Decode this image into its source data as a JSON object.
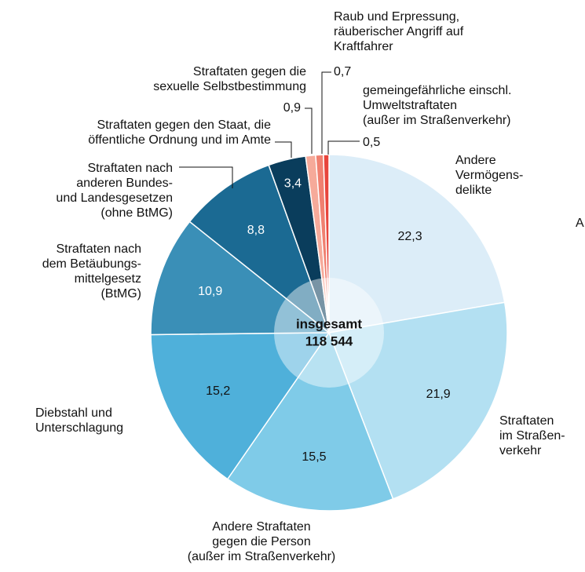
{
  "chart_data": {
    "type": "pie",
    "center_label": [
      "insgesamt",
      "118 544"
    ],
    "categories": [
      [
        "Andere",
        "Vermögens-",
        "delikte"
      ],
      [
        "Straftaten",
        "im Straßen-",
        "verkehr"
      ],
      [
        "Andere Straftaten",
        "gegen die Person",
        "(außer im Straßenverkehr)"
      ],
      [
        "Diebstahl und",
        "Unterschlagung"
      ],
      [
        "Straftaten nach",
        "dem Betäubungs-",
        "mittelgesetz",
        "(BtMG)"
      ],
      [
        "Straftaten nach",
        "anderen Bundes-",
        "und Landesgesetzen",
        "(ohne BtMG)"
      ],
      [
        "Straftaten gegen den Staat, die",
        "öffentliche Ordnung und im Amte"
      ],
      [
        "Straftaten gegen die",
        "sexuelle Selbstbestimmung"
      ],
      [
        "Raub und Erpressung,",
        "räuberischer Angriff auf",
        "Kraftfahrer"
      ],
      [
        "gemeingefährliche einschl.",
        "Umweltstraftaten",
        "(außer im Straßenverkehr)"
      ]
    ],
    "values": [
      22.3,
      21.9,
      15.5,
      15.2,
      10.9,
      8.8,
      3.4,
      0.9,
      0.7,
      0.5
    ],
    "value_labels": [
      "22,3",
      "21,9",
      "15,5",
      "15,2",
      "10,9",
      "8,8",
      "3,4",
      "0,9",
      "0,7",
      "0,5"
    ],
    "colors": [
      "#dcedf8",
      "#b3e0f2",
      "#7fcbe8",
      "#4fb0da",
      "#3a8fb7",
      "#1b6a93",
      "#0a3d5c",
      "#f6aa9a",
      "#f08070",
      "#e8453c"
    ],
    "stray_label": "A"
  }
}
